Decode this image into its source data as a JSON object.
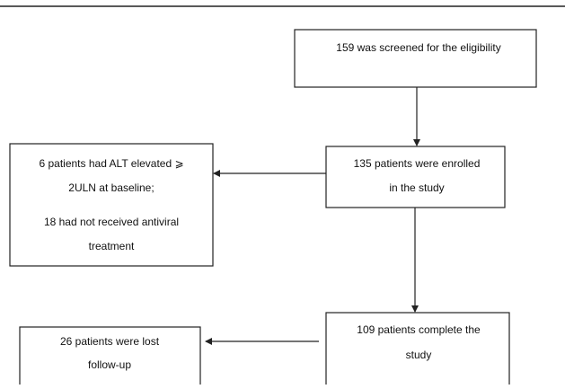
{
  "nodes": [
    {
      "lines": [
        "159 was screened for the eligibility"
      ]
    },
    {
      "lines": [
        "135 patients were enrolled",
        "in the study"
      ]
    },
    {
      "lines": [
        "6 patients had ALT elevated ⩾",
        "2ULN at baseline;",
        "18 had not received antiviral",
        "treatment"
      ]
    },
    {
      "lines": [
        "109 patients complete the",
        "study"
      ]
    },
    {
      "lines": [
        "26 patients were lost",
        "follow-up"
      ]
    }
  ]
}
